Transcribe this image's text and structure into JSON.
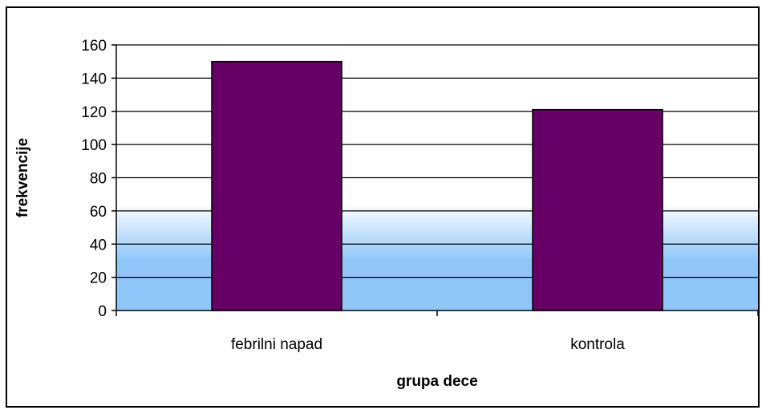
{
  "chart_data": {
    "type": "bar",
    "categories": [
      "febrilni napad",
      "kontrola"
    ],
    "series": [
      {
        "values": [
          150,
          121
        ]
      }
    ],
    "title": "",
    "xlabel": "grupa dece",
    "ylabel": "frekvencije",
    "ylim": [
      0,
      160
    ],
    "yticks": [
      0,
      20,
      40,
      60,
      80,
      100,
      120,
      140,
      160
    ],
    "grid": true,
    "legend": "none",
    "colors": {
      "bar_fill": "#660066",
      "bar_stroke": "#000000",
      "plot_gradient_top": "#ffffff",
      "plot_gradient_bottom": "#8fc6f7"
    }
  }
}
